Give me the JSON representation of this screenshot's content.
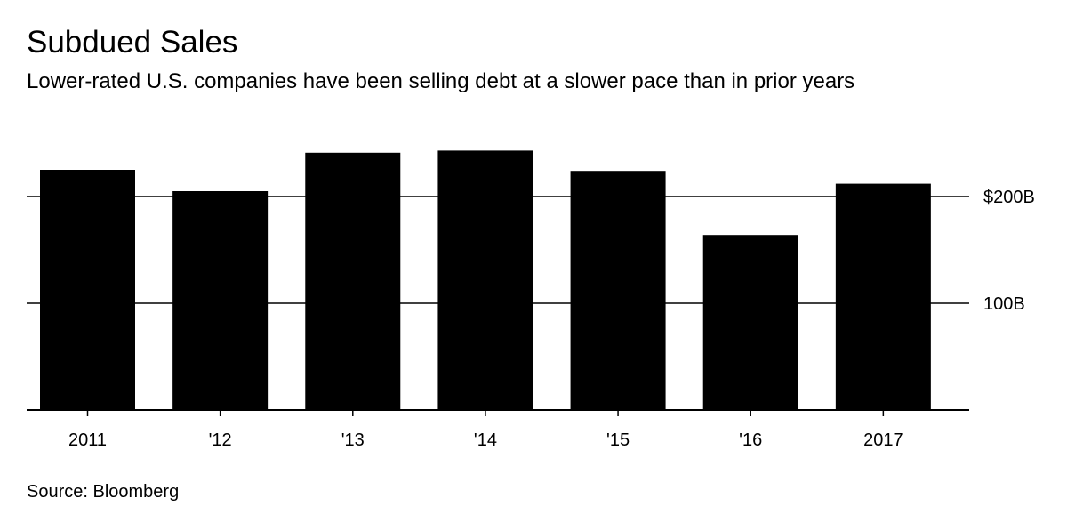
{
  "header": {
    "title": "Subdued Sales",
    "subtitle": "Lower-rated U.S. companies have been selling debt at a slower pace than in prior years"
  },
  "footer": {
    "source": "Source: Bloomberg"
  },
  "colors": {
    "bar": "#000000",
    "grid": "#000000",
    "background": "#ffffff"
  },
  "chart_data": {
    "type": "bar",
    "title": "Subdued Sales",
    "subtitle": "Lower-rated U.S. companies have been selling debt at a slower pace than in prior years",
    "categories": [
      "2011",
      "'12",
      "'13",
      "'14",
      "'15",
      "'16",
      "2017"
    ],
    "values": [
      225,
      205,
      241,
      243,
      224,
      164,
      212
    ],
    "unit": "billion USD",
    "xlabel": "",
    "ylabel": "",
    "ylim": [
      0,
      250
    ],
    "yticks": [
      {
        "value": 100,
        "label": "100B"
      },
      {
        "value": 200,
        "label": "$200B"
      }
    ],
    "grid": true,
    "yaxis_side": "right"
  }
}
